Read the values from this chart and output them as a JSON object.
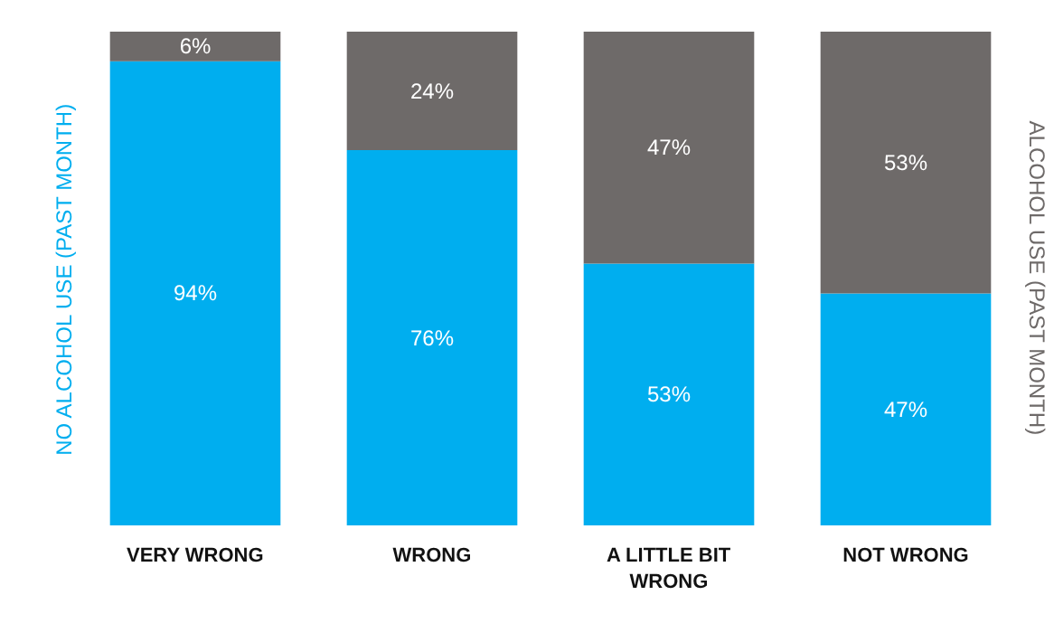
{
  "chart_data": {
    "type": "bar",
    "stacked": true,
    "categories": [
      "VERY WRONG",
      "WRONG",
      "A LITTLE BIT WRONG",
      "NOT WRONG"
    ],
    "ylabel": "NO ALCOHOL USE (PAST MONTH)",
    "y2label": "ALCOHOL USE (PAST MONTH)",
    "series": [
      {
        "color": "#00aeef",
        "values": [
          94,
          76,
          53,
          47
        ],
        "value_labels": [
          "94%",
          "76%",
          "53%",
          "47%"
        ]
      },
      {
        "color": "#6e6a69",
        "values": [
          6,
          24,
          47,
          53
        ],
        "value_labels": [
          "6%",
          "24%",
          "47%",
          "53%"
        ]
      }
    ],
    "grid": false
  }
}
